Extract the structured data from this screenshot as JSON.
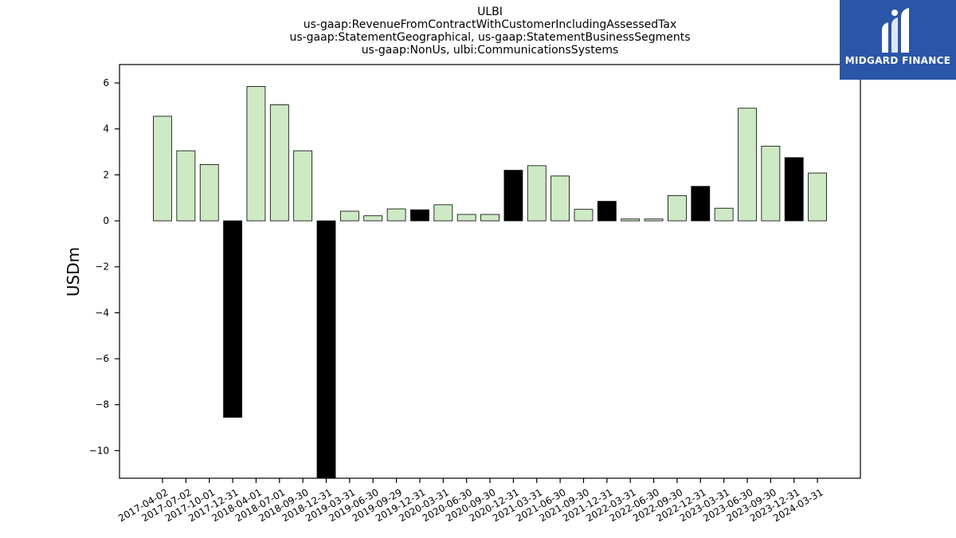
{
  "header": {
    "title_lines": [
      "ULBI",
      "us-gaap:RevenueFromContractWithCustomerIncludingAssessedTax",
      "us-gaap:StatementGeographical, us-gaap:StatementBusinessSegments",
      "us-gaap:NonUs, ulbi:CommunicationsSystems"
    ]
  },
  "logo": {
    "text": "MIDGARD FINANCE",
    "background": "#2b56a8"
  },
  "colors": {
    "positive_bar": "#cdeac5",
    "highlight_bar": "#000000",
    "bar_edge": "#000000"
  },
  "chart_data": {
    "type": "bar",
    "title": "ULBI",
    "ylabel": "USDm",
    "xlabel": "",
    "ylim": [
      -11.2,
      6.8
    ],
    "yticks": [
      6,
      4,
      2,
      0,
      -2,
      -4,
      -6,
      -8,
      -10
    ],
    "grid": false,
    "categories": [
      "2017-04-02",
      "2017-07-02",
      "2017-10-01",
      "2017-12-31",
      "2018-04-01",
      "2018-07-01",
      "2018-09-30",
      "2018-12-31",
      "2019-03-31",
      "2019-06-30",
      "2019-09-29",
      "2019-12-31",
      "2020-03-31",
      "2020-06-30",
      "2020-09-30",
      "2020-12-31",
      "2021-03-31",
      "2021-06-30",
      "2021-09-30",
      "2021-12-31",
      "2022-03-31",
      "2022-06-30",
      "2022-09-30",
      "2022-12-31",
      "2023-03-31",
      "2023-06-30",
      "2023-09-30",
      "2023-12-31",
      "2024-03-31"
    ],
    "values": [
      4.55,
      3.05,
      2.45,
      -8.55,
      5.85,
      5.05,
      3.05,
      -11.3,
      0.42,
      0.22,
      0.52,
      0.48,
      0.7,
      0.28,
      0.28,
      2.2,
      2.4,
      1.95,
      0.5,
      0.85,
      0.08,
      0.08,
      1.1,
      1.5,
      0.55,
      4.9,
      3.25,
      2.75,
      2.08
    ],
    "highlight": [
      false,
      false,
      false,
      true,
      false,
      false,
      false,
      true,
      false,
      false,
      false,
      true,
      false,
      false,
      false,
      true,
      false,
      false,
      false,
      true,
      false,
      false,
      false,
      true,
      false,
      false,
      false,
      true,
      false
    ]
  }
}
